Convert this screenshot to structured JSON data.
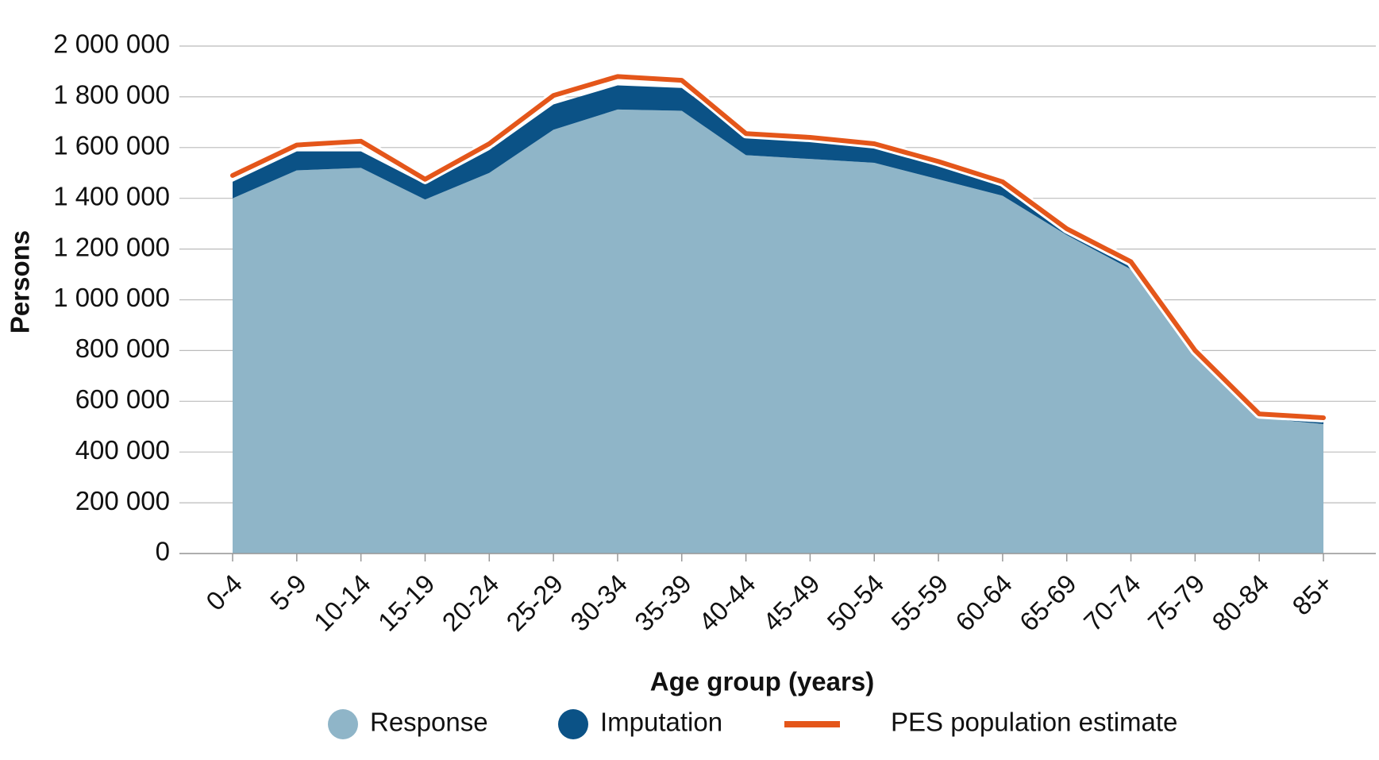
{
  "chart_data": {
    "type": "stacked-area-line",
    "x_label": "Age group (years)",
    "y_label": "Persons",
    "categories": [
      "0-4",
      "5-9",
      "10-14",
      "15-19",
      "20-24",
      "25-29",
      "30-34",
      "35-39",
      "40-44",
      "45-49",
      "50-54",
      "55-59",
      "60-64",
      "65-69",
      "70-74",
      "75-79",
      "80-84",
      "85+"
    ],
    "series": [
      {
        "name": "Response",
        "color": "#8fb5c8",
        "kind": "area",
        "values": [
          1400000,
          1510000,
          1520000,
          1395000,
          1500000,
          1670000,
          1750000,
          1745000,
          1570000,
          1555000,
          1540000,
          1475000,
          1410000,
          1255000,
          1120000,
          790000,
          535000,
          510000
        ]
      },
      {
        "name": "Imputation",
        "color": "#0b5286",
        "kind": "area",
        "values": [
          65000,
          75000,
          65000,
          60000,
          90000,
          100000,
          95000,
          90000,
          75000,
          80000,
          70000,
          60000,
          50000,
          25000,
          25000,
          10000,
          10000,
          10000
        ]
      },
      {
        "name": "PES population estimate",
        "color": "#e4561a",
        "kind": "line",
        "values": [
          1490000,
          1610000,
          1625000,
          1475000,
          1615000,
          1805000,
          1880000,
          1865000,
          1655000,
          1640000,
          1615000,
          1545000,
          1465000,
          1280000,
          1150000,
          800000,
          550000,
          535000
        ]
      }
    ],
    "ylim": [
      0,
      2000000
    ],
    "yticks": [
      0,
      {
        "value": 200000,
        "label": "200 000"
      },
      {
        "value": 400000,
        "label": "400 000"
      },
      {
        "value": 600000,
        "label": "600 000"
      },
      {
        "value": 800000,
        "label": "800 000"
      },
      {
        "value": 1000000,
        "label": "1 000 000"
      },
      {
        "value": 1200000,
        "label": "1 200 000"
      },
      {
        "value": 1400000,
        "label": "1 400 000"
      },
      {
        "value": 1600000,
        "label": "1 600 000"
      },
      {
        "value": 1800000,
        "label": "1 800 000"
      },
      {
        "value": 2000000,
        "label": "2 000 000"
      }
    ],
    "grid": true
  }
}
